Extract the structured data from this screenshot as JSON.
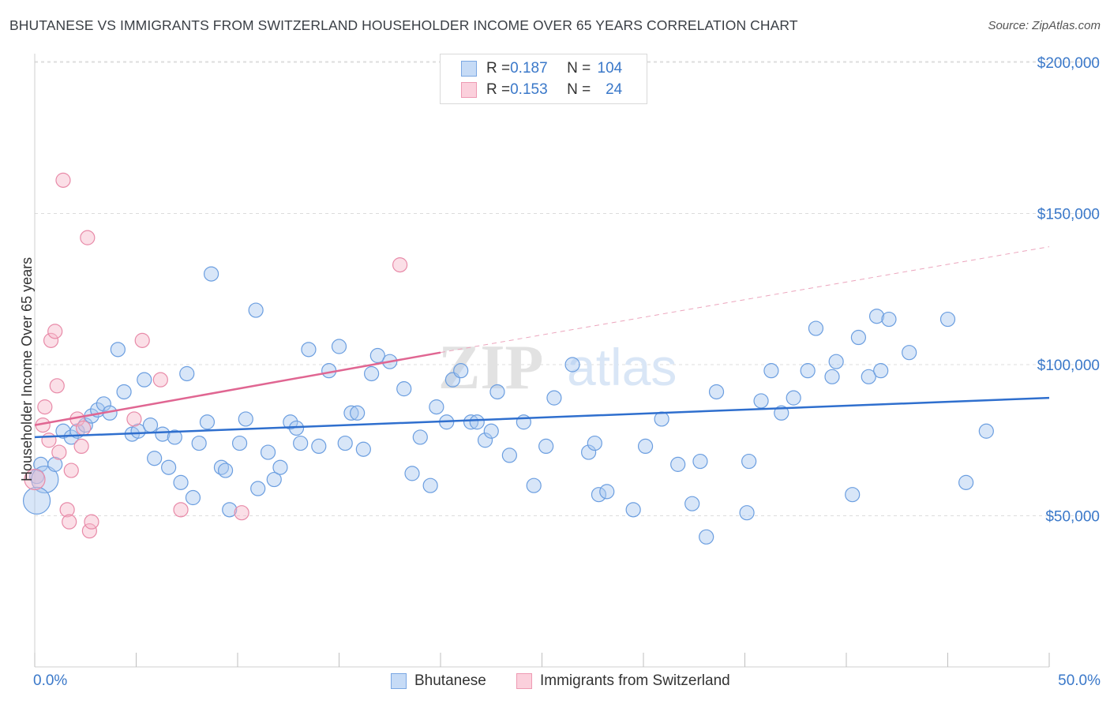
{
  "header": {
    "title": "BHUTANESE VS IMMIGRANTS FROM SWITZERLAND HOUSEHOLDER INCOME OVER 65 YEARS CORRELATION CHART",
    "source": "Source: ZipAtlas.com"
  },
  "watermark": {
    "zip": "ZIP",
    "atlas": "atlas"
  },
  "legend": {
    "rows": [
      {
        "r_label": "R = ",
        "r_value": "0.187",
        "n_label": "N = ",
        "n_value": "104",
        "color": "#a9c8ef"
      },
      {
        "r_label": "R = ",
        "r_value": "0.153",
        "n_label": "N = ",
        "n_value": "24",
        "color": "#f6b7c9"
      }
    ]
  },
  "chart_data": {
    "type": "scatter",
    "title": "BHUTANESE VS IMMIGRANTS FROM SWITZERLAND HOUSEHOLDER INCOME OVER 65 YEARS CORRELATION CHART",
    "xlabel": "",
    "ylabel": "Householder Income Over 65 years",
    "xlim": [
      0,
      50
    ],
    "ylim": [
      0,
      205000
    ],
    "x_tick_labels": [
      "0.0%",
      "50.0%"
    ],
    "y_ticks": [
      50000,
      100000,
      150000,
      200000
    ],
    "y_tick_labels": [
      "$50,000",
      "$100,000",
      "$150,000",
      "$200,000"
    ],
    "grid": true,
    "legend_position": "top-center",
    "series": [
      {
        "name": "Bhutanese",
        "color": "#a9c8ef",
        "stroke": "#6b9ee0",
        "trend": {
          "x": [
            0,
            50
          ],
          "y": [
            76000,
            89000
          ],
          "color": "#2f6fce"
        },
        "points": [
          [
            0.1,
            63000
          ],
          [
            0.3,
            67000
          ],
          [
            0.5,
            62000
          ],
          [
            1.0,
            67000
          ],
          [
            1.4,
            78000
          ],
          [
            1.8,
            76000
          ],
          [
            2.1,
            78000
          ],
          [
            2.5,
            80000
          ],
          [
            2.8,
            83000
          ],
          [
            3.1,
            85000
          ],
          [
            3.4,
            87000
          ],
          [
            3.7,
            84000
          ],
          [
            4.1,
            105000
          ],
          [
            4.4,
            91000
          ],
          [
            4.8,
            77000
          ],
          [
            5.1,
            78000
          ],
          [
            5.4,
            95000
          ],
          [
            5.7,
            80000
          ],
          [
            5.9,
            69000
          ],
          [
            6.3,
            77000
          ],
          [
            6.6,
            66000
          ],
          [
            6.9,
            76000
          ],
          [
            7.2,
            61000
          ],
          [
            7.5,
            97000
          ],
          [
            7.8,
            56000
          ],
          [
            8.1,
            74000
          ],
          [
            8.5,
            81000
          ],
          [
            8.7,
            130000
          ],
          [
            9.2,
            66000
          ],
          [
            9.4,
            65000
          ],
          [
            9.6,
            52000
          ],
          [
            10.1,
            74000
          ],
          [
            10.4,
            82000
          ],
          [
            10.9,
            118000
          ],
          [
            11.0,
            59000
          ],
          [
            11.5,
            71000
          ],
          [
            11.8,
            62000
          ],
          [
            12.1,
            66000
          ],
          [
            12.6,
            81000
          ],
          [
            12.9,
            79000
          ],
          [
            13.1,
            74000
          ],
          [
            13.5,
            105000
          ],
          [
            14.0,
            73000
          ],
          [
            14.5,
            98000
          ],
          [
            15.0,
            106000
          ],
          [
            15.3,
            74000
          ],
          [
            15.6,
            84000
          ],
          [
            15.9,
            84000
          ],
          [
            16.2,
            72000
          ],
          [
            16.6,
            97000
          ],
          [
            16.9,
            103000
          ],
          [
            17.5,
            101000
          ],
          [
            18.2,
            92000
          ],
          [
            18.6,
            64000
          ],
          [
            19.0,
            76000
          ],
          [
            19.5,
            60000
          ],
          [
            19.8,
            86000
          ],
          [
            20.3,
            81000
          ],
          [
            20.6,
            95000
          ],
          [
            21.0,
            98000
          ],
          [
            21.5,
            81000
          ],
          [
            21.8,
            81000
          ],
          [
            22.2,
            75000
          ],
          [
            22.5,
            78000
          ],
          [
            22.8,
            91000
          ],
          [
            23.4,
            70000
          ],
          [
            24.1,
            81000
          ],
          [
            24.6,
            60000
          ],
          [
            25.2,
            73000
          ],
          [
            25.6,
            89000
          ],
          [
            26.5,
            100000
          ],
          [
            27.3,
            71000
          ],
          [
            27.6,
            74000
          ],
          [
            27.8,
            57000
          ],
          [
            28.2,
            58000
          ],
          [
            29.5,
            52000
          ],
          [
            30.1,
            73000
          ],
          [
            30.9,
            82000
          ],
          [
            31.7,
            67000
          ],
          [
            32.4,
            54000
          ],
          [
            32.8,
            68000
          ],
          [
            33.1,
            43000
          ],
          [
            33.6,
            91000
          ],
          [
            35.1,
            51000
          ],
          [
            35.2,
            68000
          ],
          [
            35.8,
            88000
          ],
          [
            36.3,
            98000
          ],
          [
            36.8,
            84000
          ],
          [
            37.4,
            89000
          ],
          [
            38.1,
            98000
          ],
          [
            38.5,
            112000
          ],
          [
            39.3,
            96000
          ],
          [
            39.5,
            101000
          ],
          [
            40.3,
            57000
          ],
          [
            40.6,
            109000
          ],
          [
            41.1,
            96000
          ],
          [
            41.5,
            116000
          ],
          [
            41.7,
            98000
          ],
          [
            42.1,
            115000
          ],
          [
            43.1,
            104000
          ],
          [
            45.0,
            115000
          ],
          [
            45.9,
            61000
          ],
          [
            46.9,
            78000
          ],
          [
            0.1,
            55000
          ]
        ],
        "sizes": {
          "big": [
            [
              0.1,
              55000
            ],
            [
              0.5,
              62000
            ]
          ]
        }
      },
      {
        "name": "Immigrants from Switzerland",
        "color": "#f6b7c9",
        "stroke": "#e88aa8",
        "trend": {
          "x": [
            0,
            20
          ],
          "y": [
            80000,
            104000
          ],
          "color": "#e06692",
          "dashed_extension": {
            "x": [
              20,
              50
            ],
            "y": [
              104000,
              139000
            ]
          }
        },
        "points": [
          [
            0.0,
            62000
          ],
          [
            0.4,
            80000
          ],
          [
            0.5,
            86000
          ],
          [
            0.7,
            75000
          ],
          [
            0.8,
            108000
          ],
          [
            1.0,
            111000
          ],
          [
            1.1,
            93000
          ],
          [
            1.2,
            71000
          ],
          [
            1.4,
            161000
          ],
          [
            1.6,
            52000
          ],
          [
            1.7,
            48000
          ],
          [
            1.8,
            65000
          ],
          [
            2.1,
            82000
          ],
          [
            2.3,
            73000
          ],
          [
            2.4,
            79000
          ],
          [
            2.6,
            142000
          ],
          [
            2.7,
            45000
          ],
          [
            2.8,
            48000
          ],
          [
            4.9,
            82000
          ],
          [
            5.3,
            108000
          ],
          [
            6.2,
            95000
          ],
          [
            7.2,
            52000
          ],
          [
            10.2,
            51000
          ],
          [
            18.0,
            133000
          ]
        ]
      }
    ]
  }
}
